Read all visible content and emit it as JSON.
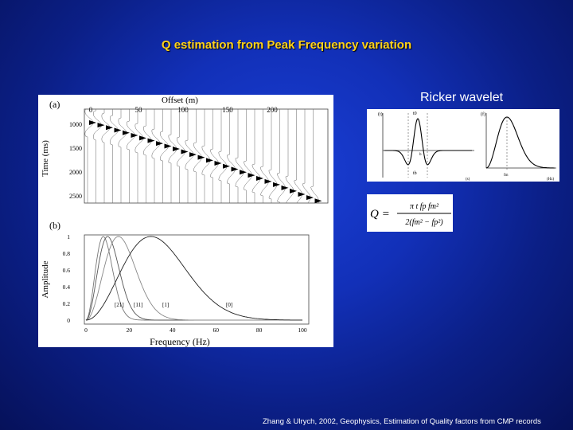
{
  "slide": {
    "title": "Q estimation from Peak Frequency variation",
    "ricker_label": "Ricker wavelet",
    "citation": "Zhang & Ulrych, 2002, Geophysics, Estimation of Quality factors from CMP records"
  },
  "figure_a": {
    "panel_label": "(a)",
    "xlabel": "Offset (m)",
    "ylabel": "Time (ms)",
    "x_ticks": [
      "0",
      "50",
      "100",
      "150",
      "200"
    ],
    "y_ticks": [
      "1000",
      "1500",
      "2000",
      "2500"
    ]
  },
  "figure_b": {
    "panel_label": "(b)",
    "xlabel": "Frequency (Hz)",
    "ylabel": "Amplitude",
    "x_ticks": [
      "0",
      "20",
      "40",
      "60",
      "80",
      "100"
    ],
    "y_ticks": [
      "1",
      "0.8",
      "0.6",
      "0.4",
      "0.2",
      "0"
    ],
    "curve_labels": [
      "[21]",
      "[11]",
      "[1]",
      "[0]"
    ]
  },
  "ricker": {
    "left_axis_label": "(t)",
    "right_axis_label": "(f)",
    "t0_label": "t0",
    "tb_label": "tb",
    "fm_label": "fm",
    "b_label": "b",
    "x_unit_left": "(s)",
    "x_unit_right": "(Hz)"
  },
  "formula": {
    "lhs": "Q =",
    "numerator": "π t fp fm²",
    "denominator": "2(fm² − fp²)"
  },
  "chart_data": {
    "type": "line",
    "title": "",
    "xlabel": "Frequency (Hz)",
    "ylabel": "Amplitude",
    "xlim": [
      0,
      120
    ],
    "ylim": [
      0,
      1
    ],
    "series": [
      {
        "name": "[21]",
        "peak_frequency": 8
      },
      {
        "name": "[11]",
        "peak_frequency": 10
      },
      {
        "name": "[1]",
        "peak_frequency": 15
      },
      {
        "name": "[0]",
        "peak_frequency": 30
      }
    ]
  }
}
